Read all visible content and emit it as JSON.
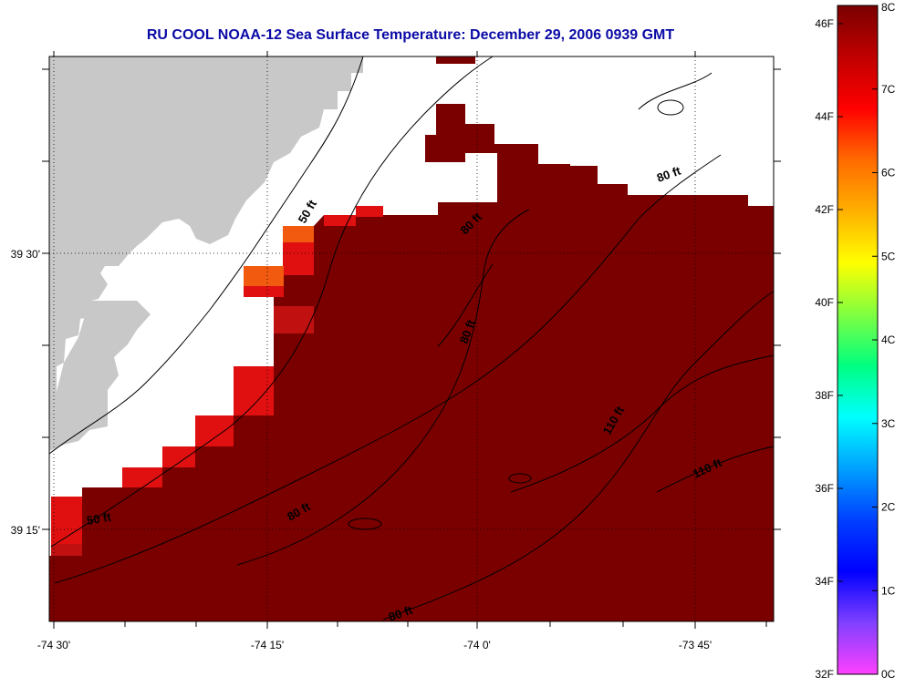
{
  "title": "RU COOL  NOAA-12  Sea Surface Temperature:  December 29, 2006 0939 GMT",
  "map": {
    "lon_ticks": [
      "-74 30'",
      "-74 15'",
      "-74 0'",
      "-73 45'"
    ],
    "lat_ticks": [
      "39 30'",
      "39 15'"
    ],
    "contour_labels": [
      "50 ft",
      "50 ft",
      "80 ft",
      "80 ft",
      "80 ft",
      "80 ft",
      "80 ft",
      "110 ft",
      "110 ft"
    ],
    "colors": {
      "land": "#c8c8c8",
      "cloud_mask": "#ffffff",
      "sst_warm": "#7a0000",
      "sst_red": "#e01010",
      "sst_orange": "#f25a10",
      "grid_line": "#000000"
    }
  },
  "colorbar": {
    "fahrenheit_labels": [
      "46F",
      "44F",
      "42F",
      "40F",
      "38F",
      "36F",
      "34F",
      "32F"
    ],
    "celsius_labels": [
      "8C",
      "7C",
      "6C",
      "5C",
      "4C",
      "3C",
      "2C",
      "1C",
      "0C"
    ],
    "gradient": [
      "#7a0000",
      "#c00000",
      "#ff0000",
      "#ff6a00",
      "#ffb000",
      "#ffff00",
      "#80ff40",
      "#00ff80",
      "#00ffff",
      "#00a0ff",
      "#0040ff",
      "#0000ff",
      "#8040ff",
      "#ff40ff"
    ]
  }
}
